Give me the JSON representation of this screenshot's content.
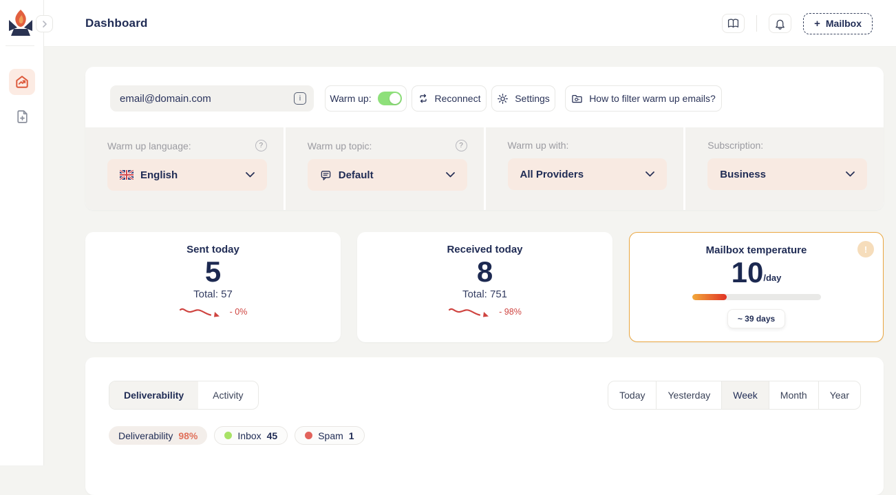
{
  "header": {
    "title": "Dashboard",
    "mailbox_button_label": "Mailbox",
    "plus_glyph": "+"
  },
  "sidebar": {
    "items": [
      {
        "name": "dashboard",
        "active": true
      },
      {
        "name": "add-mailbox",
        "active": false
      }
    ]
  },
  "controls": {
    "email_value": "email@domain.com",
    "email_info_glyph": "i",
    "warmup_label": "Warm up:",
    "warmup_on": true,
    "reconnect_label": "Reconnect",
    "settings_label": "Settings",
    "filter_help_label": "How to filter warm up emails?",
    "help_glyph": "?",
    "selects": [
      {
        "label": "Warm up language:",
        "value": "English",
        "icon": "uk-flag-icon",
        "help": true
      },
      {
        "label": "Warm up topic:",
        "value": "Default",
        "icon": "chat-icon",
        "help": true
      },
      {
        "label": "Warm up with:",
        "value": "All Providers",
        "icon": null,
        "help": false
      },
      {
        "label": "Subscription:",
        "value": "Business",
        "icon": null,
        "help": false
      }
    ]
  },
  "stats": {
    "sent": {
      "title": "Sent today",
      "value": "5",
      "total_label": "Total: 57",
      "change": "- 0%"
    },
    "received": {
      "title": "Received today",
      "value": "8",
      "total_label": "Total: 751",
      "change": "- 98%"
    },
    "temperature": {
      "title": "Mailbox temperature",
      "value": "10",
      "unit": "/day",
      "progress_pct": 27,
      "remaining_label": "~ 39 days",
      "warning_glyph": "!"
    }
  },
  "panel": {
    "tabs": [
      {
        "label": "Deliverability",
        "active": true
      },
      {
        "label": "Activity",
        "active": false
      }
    ],
    "ranges": [
      {
        "label": "Today",
        "active": false
      },
      {
        "label": "Yesterday",
        "active": false
      },
      {
        "label": "Week",
        "active": true
      },
      {
        "label": "Month",
        "active": false
      },
      {
        "label": "Year",
        "active": false
      }
    ],
    "legend": [
      {
        "label": "Deliverability",
        "value": "98%"
      },
      {
        "label": "Inbox",
        "value": "45",
        "dot_color": "#a8e266"
      },
      {
        "label": "Spam",
        "value": "1",
        "dot_color": "#e2635c"
      }
    ]
  },
  "colors": {
    "accent_orange": "#e05c3e",
    "navy_text": "#1f2b54",
    "toggle_green": "#8ee07a",
    "negative_red": "#cf4440",
    "temperature_border": "#eaa640",
    "select_pill_bg": "#f8eae2",
    "background": "#f4f4f1"
  }
}
